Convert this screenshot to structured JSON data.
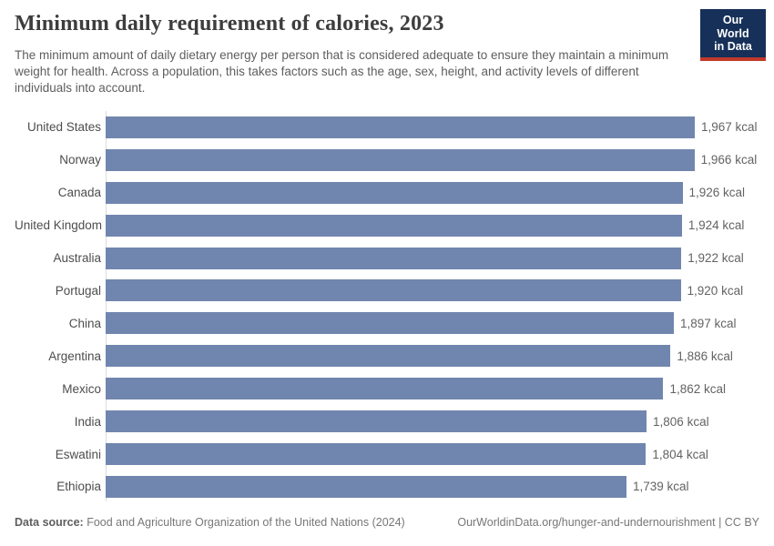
{
  "header": {
    "title": "Minimum daily requirement of calories, 2023",
    "subtitle": "The minimum amount of daily dietary energy per person that is considered adequate to ensure they maintain a minimum weight for health. Across a population, this takes factors such as the age, sex, height, and activity levels of different individuals into account."
  },
  "logo": {
    "line1": "Our World",
    "line2": "in Data",
    "bg_color": "#163059",
    "accent_color": "#c0392b"
  },
  "chart_data": {
    "type": "bar",
    "orientation": "horizontal",
    "title": "Minimum daily requirement of calories, 2023",
    "categories": [
      "United States",
      "Norway",
      "Canada",
      "United Kingdom",
      "Australia",
      "Portugal",
      "China",
      "Argentina",
      "Mexico",
      "India",
      "Eswatini",
      "Ethiopia"
    ],
    "values": [
      1967,
      1966,
      1926,
      1924,
      1922,
      1920,
      1897,
      1886,
      1862,
      1806,
      1804,
      1739
    ],
    "value_labels": [
      "1,967 kcal",
      "1,966 kcal",
      "1,926 kcal",
      "1,924 kcal",
      "1,922 kcal",
      "1,920 kcal",
      "1,897 kcal",
      "1,886 kcal",
      "1,862 kcal",
      "1,806 kcal",
      "1,804 kcal",
      "1,739 kcal"
    ],
    "unit": "kcal",
    "xlim": [
      0,
      1967
    ],
    "grid": false,
    "legend": "none",
    "bar_color": "#7186ae",
    "axis_line_color": "#dddddd"
  },
  "footer": {
    "source_label": "Data source:",
    "source_text": " Food and Agriculture Organization of the United Nations (2024)",
    "credit": "OurWorldinData.org/hunger-and-undernourishment | CC BY"
  }
}
